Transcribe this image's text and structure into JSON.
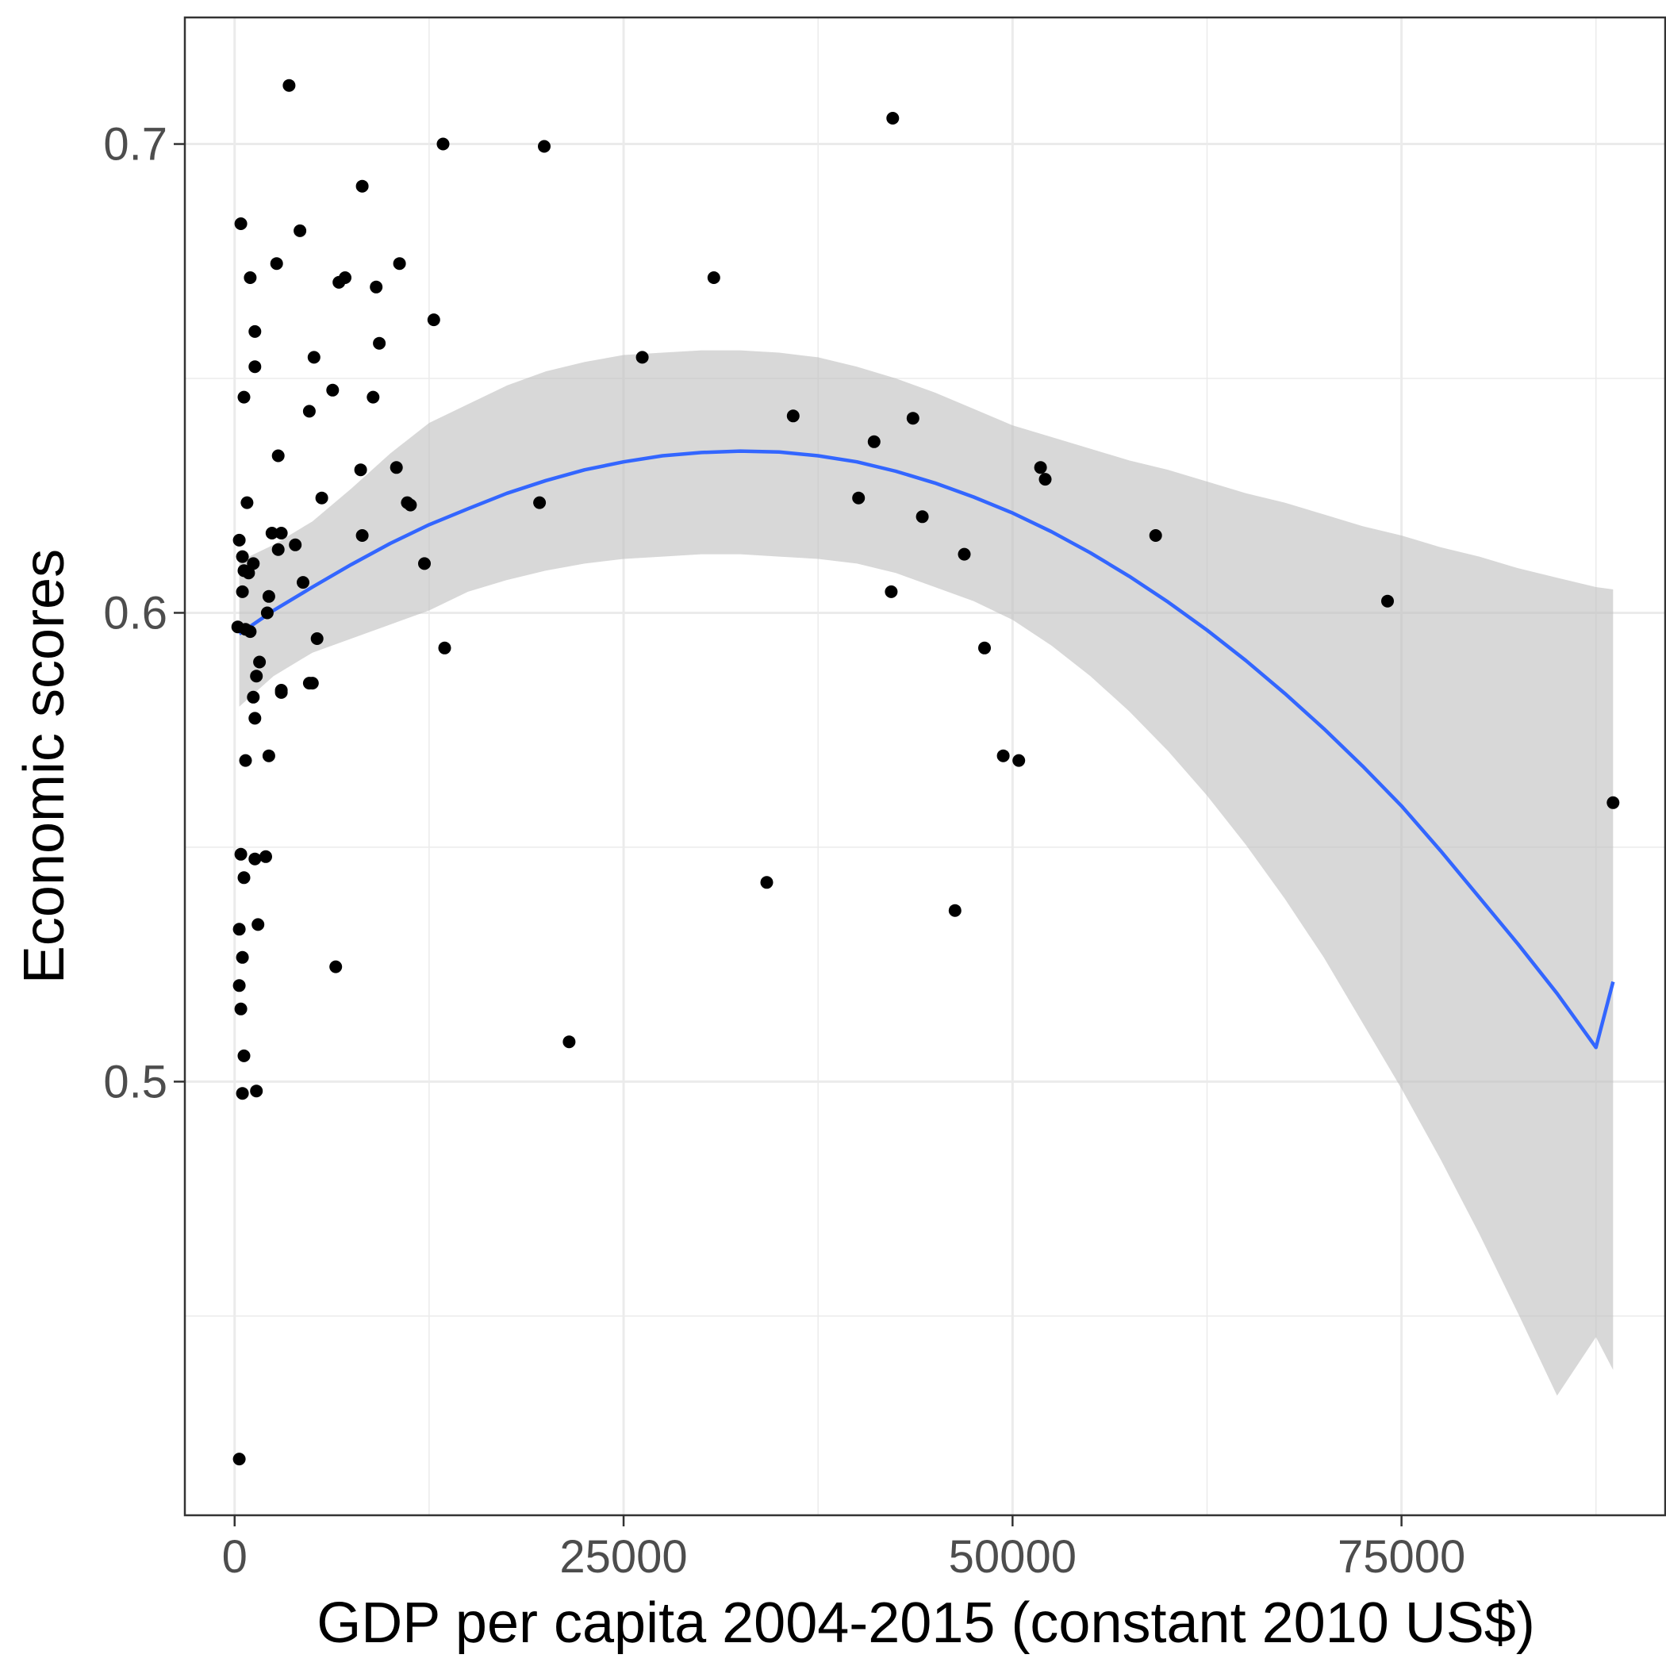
{
  "chart_data": {
    "type": "scatter",
    "title": "",
    "xlabel": "GDP per capita 2004-2015 (constant 2010 US$)",
    "ylabel": "Economic scores",
    "xlim": [
      -3200,
      92000
    ],
    "ylim": [
      0.4075,
      0.727
    ],
    "x_ticks": [
      0,
      25000,
      50000,
      75000
    ],
    "x_tick_labels": [
      "0",
      "25000",
      "50000",
      "75000"
    ],
    "x_minor_ticks": [
      12500,
      37500,
      62500,
      87500
    ],
    "y_ticks": [
      0.5,
      0.6,
      0.7
    ],
    "y_tick_labels": [
      "0.5",
      "0.6",
      "0.7"
    ],
    "y_minor_ticks": [
      0.45,
      0.55,
      0.65
    ],
    "grid": true,
    "colors": {
      "points": "#000000",
      "fit_line": "#3366ff",
      "confidence_band": "#bebebe",
      "grid": "#ebebeb",
      "panel_border": "#333333"
    },
    "points": [
      [
        300,
        0.4195
      ],
      [
        3500,
        0.7125
      ],
      [
        42300,
        0.7055
      ],
      [
        13400,
        0.7
      ],
      [
        19900,
        0.6995
      ],
      [
        8200,
        0.691
      ],
      [
        400,
        0.683
      ],
      [
        4200,
        0.6815
      ],
      [
        2700,
        0.6745
      ],
      [
        10600,
        0.6745
      ],
      [
        1000,
        0.6715
      ],
      [
        7100,
        0.6715
      ],
      [
        6700,
        0.6705
      ],
      [
        9100,
        0.6695
      ],
      [
        30800,
        0.6715
      ],
      [
        12800,
        0.6625
      ],
      [
        1300,
        0.66
      ],
      [
        9300,
        0.6575
      ],
      [
        5100,
        0.6545
      ],
      [
        26200,
        0.6545
      ],
      [
        1300,
        0.6525
      ],
      [
        6300,
        0.6475
      ],
      [
        600,
        0.646
      ],
      [
        8900,
        0.646
      ],
      [
        4800,
        0.643
      ],
      [
        35900,
        0.642
      ],
      [
        43600,
        0.6415
      ],
      [
        41100,
        0.6365
      ],
      [
        2800,
        0.6335
      ],
      [
        8100,
        0.6305
      ],
      [
        10400,
        0.631
      ],
      [
        51800,
        0.631
      ],
      [
        52100,
        0.6285
      ],
      [
        5600,
        0.6245
      ],
      [
        40100,
        0.6245
      ],
      [
        11100,
        0.6235
      ],
      [
        800,
        0.6235
      ],
      [
        19600,
        0.6235
      ],
      [
        11300,
        0.623
      ],
      [
        44200,
        0.6205
      ],
      [
        2400,
        0.617
      ],
      [
        3000,
        0.617
      ],
      [
        59200,
        0.6165
      ],
      [
        8200,
        0.6165
      ],
      [
        300,
        0.6155
      ],
      [
        3900,
        0.6145
      ],
      [
        2800,
        0.6135
      ],
      [
        46900,
        0.6125
      ],
      [
        500,
        0.612
      ],
      [
        12200,
        0.6105
      ],
      [
        1200,
        0.6105
      ],
      [
        600,
        0.609
      ],
      [
        900,
        0.6085
      ],
      [
        4400,
        0.6065
      ],
      [
        500,
        0.6045
      ],
      [
        42200,
        0.6045
      ],
      [
        2200,
        0.6035
      ],
      [
        74100,
        0.6025
      ],
      [
        2100,
        0.6
      ],
      [
        200,
        0.597
      ],
      [
        1000,
        0.596
      ],
      [
        700,
        0.5965
      ],
      [
        5300,
        0.5945
      ],
      [
        13500,
        0.5925
      ],
      [
        48200,
        0.5925
      ],
      [
        1600,
        0.5895
      ],
      [
        1400,
        0.5865
      ],
      [
        4800,
        0.585
      ],
      [
        5000,
        0.585
      ],
      [
        3000,
        0.5835
      ],
      [
        3000,
        0.583
      ],
      [
        1200,
        0.582
      ],
      [
        1300,
        0.5775
      ],
      [
        2200,
        0.5695
      ],
      [
        700,
        0.5685
      ],
      [
        49400,
        0.5695
      ],
      [
        50400,
        0.5685
      ],
      [
        88600,
        0.5595
      ],
      [
        400,
        0.5485
      ],
      [
        1300,
        0.5475
      ],
      [
        2000,
        0.548
      ],
      [
        600,
        0.5435
      ],
      [
        34200,
        0.5425
      ],
      [
        1500,
        0.5335
      ],
      [
        300,
        0.5325
      ],
      [
        46300,
        0.5365
      ],
      [
        6500,
        0.5245
      ],
      [
        500,
        0.5265
      ],
      [
        300,
        0.5205
      ],
      [
        400,
        0.5155
      ],
      [
        21500,
        0.5085
      ],
      [
        600,
        0.5055
      ],
      [
        500,
        0.4975
      ],
      [
        1400,
        0.498
      ]
    ],
    "fit_line": {
      "x": [
        300,
        2500,
        5000,
        7500,
        10000,
        12500,
        15000,
        17500,
        20000,
        22500,
        25000,
        27500,
        30000,
        32500,
        35000,
        37500,
        40000,
        42500,
        45000,
        47500,
        50000,
        52500,
        55000,
        57500,
        60000,
        62500,
        65000,
        67500,
        70000,
        72500,
        75000,
        77500,
        80000,
        82500,
        85000,
        87500,
        88600
      ],
      "y": [
        0.5955,
        0.6005,
        0.6055,
        0.6103,
        0.6148,
        0.6188,
        0.6222,
        0.6255,
        0.6282,
        0.6305,
        0.6322,
        0.6335,
        0.6342,
        0.6345,
        0.6343,
        0.6335,
        0.6322,
        0.6302,
        0.6277,
        0.6247,
        0.6213,
        0.6173,
        0.6128,
        0.6078,
        0.6023,
        0.5963,
        0.5898,
        0.5828,
        0.5753,
        0.5673,
        0.5588,
        0.5493,
        0.5393,
        0.5293,
        0.5188,
        0.5073,
        0.5213
      ]
    },
    "confidence_band": {
      "x": [
        300,
        2500,
        5000,
        7500,
        10000,
        12500,
        15000,
        17500,
        20000,
        22500,
        25000,
        27500,
        30000,
        32500,
        35000,
        37500,
        40000,
        42500,
        45000,
        47500,
        50000,
        52500,
        55000,
        57500,
        60000,
        62500,
        65000,
        67500,
        70000,
        72500,
        75000,
        77500,
        80000,
        82500,
        85000,
        87500,
        88600
      ],
      "upper": [
        0.611,
        0.6145,
        0.6195,
        0.6265,
        0.634,
        0.6405,
        0.6445,
        0.6485,
        0.6515,
        0.6535,
        0.655,
        0.6555,
        0.656,
        0.656,
        0.6555,
        0.6545,
        0.6525,
        0.65,
        0.647,
        0.6435,
        0.64,
        0.6375,
        0.635,
        0.6325,
        0.6305,
        0.628,
        0.6255,
        0.6235,
        0.621,
        0.6185,
        0.6165,
        0.614,
        0.612,
        0.6095,
        0.6075,
        0.6055,
        0.605
      ],
      "lower": [
        0.58,
        0.5865,
        0.5915,
        0.5945,
        0.5975,
        0.6005,
        0.6045,
        0.607,
        0.609,
        0.6105,
        0.6115,
        0.612,
        0.6125,
        0.6125,
        0.612,
        0.6115,
        0.6105,
        0.6085,
        0.6055,
        0.6025,
        0.5985,
        0.593,
        0.5865,
        0.579,
        0.5705,
        0.561,
        0.5505,
        0.539,
        0.5265,
        0.5125,
        0.4985,
        0.4835,
        0.4675,
        0.4505,
        0.433,
        0.4455,
        0.4385
      ]
    }
  }
}
